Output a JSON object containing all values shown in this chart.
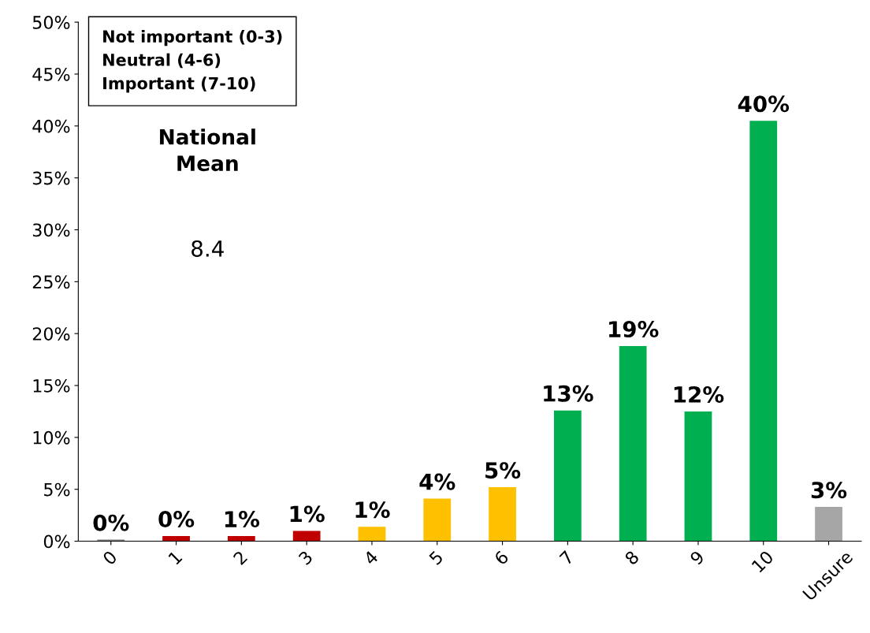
{
  "chart_data": {
    "type": "bar",
    "categories": [
      "0",
      "1",
      "2",
      "3",
      "4",
      "5",
      "6",
      "7",
      "8",
      "9",
      "10",
      "Unsure"
    ],
    "values": [
      0.15,
      0.5,
      0.5,
      1.0,
      1.4,
      4.1,
      5.2,
      12.6,
      18.8,
      12.5,
      40.5,
      3.3
    ],
    "colors": [
      "#7f7f7f",
      "#c00000",
      "#c00000",
      "#c00000",
      "#ffc000",
      "#ffc000",
      "#ffc000",
      "#00b050",
      "#00b050",
      "#00b050",
      "#00b050",
      "#a6a6a6"
    ],
    "value_labels": [
      "0%",
      "0%",
      "1%",
      "1%",
      "1%",
      "4%",
      "5%",
      "13%",
      "19%",
      "12%",
      "40%",
      "3%"
    ],
    "ylim": [
      0,
      50
    ],
    "yticks": [
      {
        "value": 0,
        "label": "0%"
      },
      {
        "value": 5,
        "label": "5%"
      },
      {
        "value": 10,
        "label": "10%"
      },
      {
        "value": 15,
        "label": "15%"
      },
      {
        "value": 20,
        "label": "20%"
      },
      {
        "value": 25,
        "label": "25%"
      },
      {
        "value": 30,
        "label": "30%"
      },
      {
        "value": 35,
        "label": "35%"
      },
      {
        "value": 40,
        "label": "40%"
      },
      {
        "value": 45,
        "label": "45%"
      },
      {
        "value": 50,
        "label": "50%"
      }
    ],
    "annotations": [
      "Not important (0-3)",
      "Neutral (4-6)",
      "Important (7-10)",
      "National\nMean",
      "8.4"
    ],
    "grid": false,
    "legend": false
  }
}
